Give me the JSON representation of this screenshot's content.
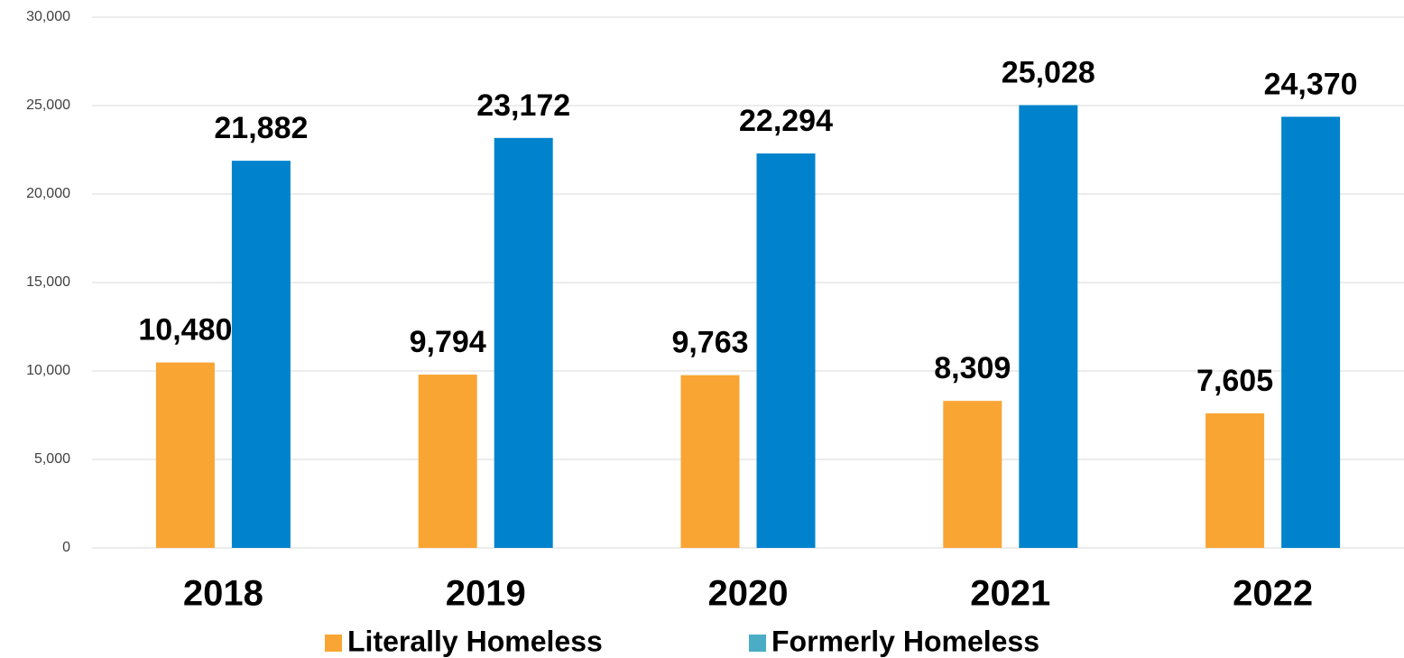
{
  "chart_data": {
    "type": "bar",
    "categories": [
      "2018",
      "2019",
      "2020",
      "2021",
      "2022"
    ],
    "series": [
      {
        "name": "Literally Homeless",
        "color": "#f9a533",
        "legend_color": "#f9a533",
        "values": [
          10480,
          9794,
          9763,
          8309,
          7605
        ],
        "value_labels": [
          "10,480",
          "9,794",
          "9,763",
          "8,309",
          "7,605"
        ]
      },
      {
        "name": "Formerly Homeless",
        "color": "#0083cc",
        "legend_color": "#4bacc6",
        "values": [
          21882,
          23172,
          22294,
          25028,
          24370
        ],
        "value_labels": [
          "21,882",
          "23,172",
          "22,294",
          "25,028",
          "24,370"
        ]
      }
    ],
    "ylim": [
      0,
      30000
    ],
    "yticks": [
      0,
      {
        "value": 5000,
        "label": "5,000"
      },
      {
        "value": 10000,
        "label": "10,000"
      },
      {
        "value": 15000,
        "label": "15,000"
      },
      {
        "value": 20000,
        "label": "20,000"
      },
      {
        "value": 25000,
        "label": "25,000"
      },
      {
        "value": 30000,
        "label": "30,000"
      }
    ],
    "grid": true,
    "legend": "bottom"
  }
}
